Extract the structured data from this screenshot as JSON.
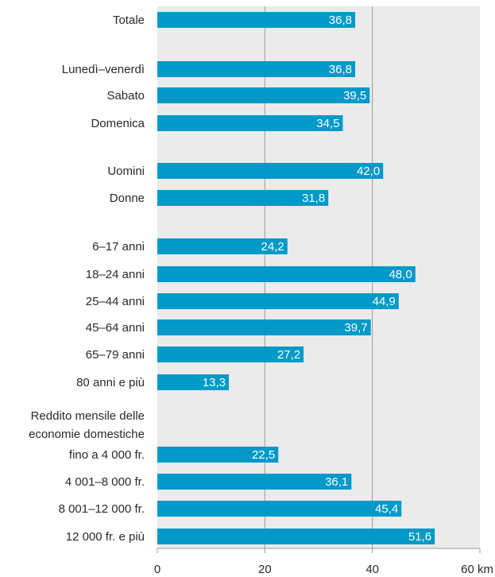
{
  "chart_data": {
    "type": "bar",
    "orientation": "horizontal",
    "bar_color": "#0099c8",
    "plot_background": "#ebebeb",
    "gridline_color": "#9a9a9a",
    "categories": [
      "Totale",
      "Lunedì–venerdì",
      "Sabato",
      "Domenica",
      "Uomini",
      "Donne",
      "6–17 anni",
      "18–24 anni",
      "25–44 anni",
      "45–64 anni",
      "65–79 anni",
      "80 anni e più",
      "fino a 4 000 fr.",
      "4 001–8 000 fr.",
      "8 001–12 000 fr.",
      "12 000 fr. e più"
    ],
    "values": [
      36.8,
      36.8,
      39.5,
      34.5,
      42.0,
      31.8,
      24.2,
      48.0,
      44.9,
      39.7,
      27.2,
      13.3,
      22.5,
      36.1,
      45.4,
      51.6
    ],
    "value_labels": [
      "36,8",
      "36,8",
      "39,5",
      "34,5",
      "42,0",
      "31,8",
      "24,2",
      "48,0",
      "44,9",
      "39,7",
      "27,2",
      "13,3",
      "22,5",
      "36,1",
      "45,4",
      "51,6"
    ],
    "group_heading": [
      "Reddito mensile delle",
      "economie domestiche"
    ],
    "xlim": [
      0,
      60
    ],
    "x_ticks": [
      "0",
      "20",
      "40",
      "60 km"
    ],
    "grid": true,
    "title": "",
    "xlabel": "",
    "ylabel": ""
  }
}
